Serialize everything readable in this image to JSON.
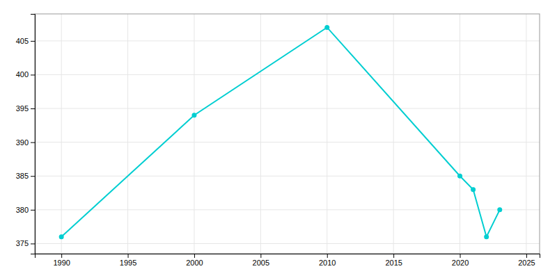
{
  "chart_data": {
    "type": "line",
    "x": [
      1990,
      2000,
      2010,
      2020,
      2021,
      2022,
      2023
    ],
    "values": [
      376,
      394,
      407,
      385,
      383,
      376,
      380
    ],
    "color": "#00CED1",
    "marker": "circle",
    "xlim": [
      1988,
      2026
    ],
    "ylim": [
      373.5,
      409
    ],
    "xticks": [
      1990,
      1995,
      2000,
      2005,
      2010,
      2015,
      2020,
      2025
    ],
    "yticks": [
      375,
      380,
      385,
      390,
      395,
      400,
      405
    ],
    "grid": true
  }
}
